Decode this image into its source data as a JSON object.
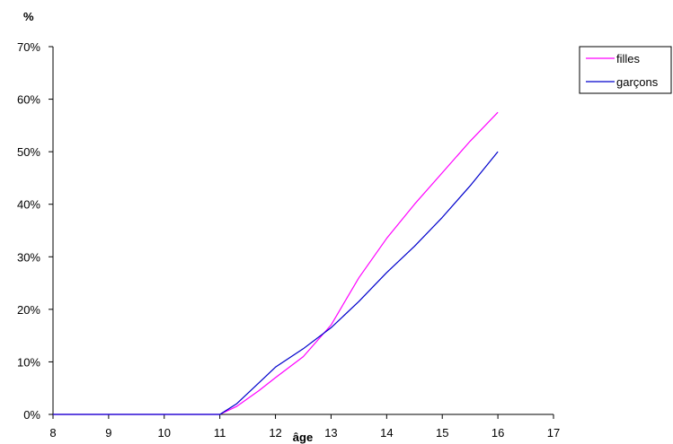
{
  "chart_data": {
    "type": "line",
    "ylabel": "%",
    "xlabel": "âge",
    "x_ticks": [
      8,
      9,
      10,
      11,
      12,
      13,
      14,
      15,
      16,
      17
    ],
    "y_ticks": [
      "0%",
      "10%",
      "20%",
      "30%",
      "40%",
      "50%",
      "60%",
      "70%"
    ],
    "xlim": [
      8,
      17
    ],
    "ylim": [
      0,
      70
    ],
    "grid": false,
    "legend_position": "top-right",
    "series": [
      {
        "name": "filles",
        "color": "#ff00ff",
        "points": [
          [
            8,
            0
          ],
          [
            9,
            0
          ],
          [
            10,
            0
          ],
          [
            11,
            0
          ],
          [
            11.3,
            1.5
          ],
          [
            11.7,
            4.5
          ],
          [
            12,
            7
          ],
          [
            12.5,
            11
          ],
          [
            13,
            17
          ],
          [
            13.5,
            26
          ],
          [
            14,
            33.5
          ],
          [
            14.5,
            40
          ],
          [
            15,
            46
          ],
          [
            15.5,
            52
          ],
          [
            16,
            57.5
          ]
        ]
      },
      {
        "name": "garçons",
        "color": "#0000cc",
        "points": [
          [
            8,
            0
          ],
          [
            9,
            0
          ],
          [
            10,
            0
          ],
          [
            11,
            0
          ],
          [
            11.3,
            2
          ],
          [
            11.7,
            6
          ],
          [
            12,
            9
          ],
          [
            12.5,
            12.5
          ],
          [
            13,
            16.5
          ],
          [
            13.5,
            21.5
          ],
          [
            14,
            27
          ],
          [
            14.5,
            32
          ],
          [
            15,
            37.5
          ],
          [
            15.5,
            43.5
          ],
          [
            16,
            50
          ]
        ]
      }
    ]
  }
}
